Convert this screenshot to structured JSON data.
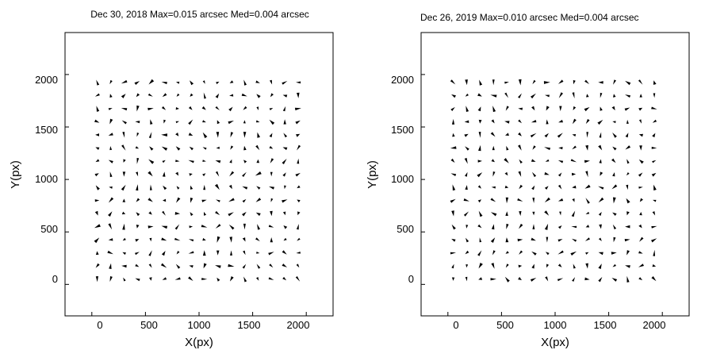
{
  "chart_data": [
    {
      "type": "quiver",
      "title": "Dec 30, 2018 Max=0.015 arcsec Med=0.004 arcsec",
      "xlabel": "X(px)",
      "ylabel": "Y(px)",
      "xlim": [
        -250,
        2250
      ],
      "ylim": [
        -300,
        2400
      ],
      "xticks": [
        0,
        500,
        1000,
        1500,
        2000
      ],
      "yticks": [
        0,
        500,
        1000,
        1500,
        2000
      ],
      "xtick_labels": [
        "0",
        "500",
        "1000",
        "1500",
        "2000"
      ],
      "ytick_labels": [
        "0",
        "500",
        "1000",
        "1500",
        "2000"
      ],
      "grid": false,
      "legend": "none",
      "vectors": {
        "x_range": [
          50,
          2000
        ],
        "y_range": [
          50,
          1990
        ],
        "spacing": 125,
        "max_arcsec": 0.015,
        "median_arcsec": 0.004,
        "seed": 17
      }
    },
    {
      "type": "quiver",
      "title": "Dec 26, 2019 Max=0.010 arcsec Med=0.004 arcsec",
      "xlabel": "X(px)",
      "ylabel": "Y(px)",
      "xlim": [
        -250,
        2250
      ],
      "ylim": [
        -300,
        2400
      ],
      "xticks": [
        0,
        500,
        1000,
        1500,
        2000
      ],
      "yticks": [
        0,
        500,
        1000,
        1500,
        2000
      ],
      "xtick_labels": [
        "0",
        "500",
        "1000",
        "1500",
        "2000"
      ],
      "ytick_labels": [
        "0",
        "500",
        "1000",
        "1500",
        "2000"
      ],
      "grid": false,
      "legend": "none",
      "vectors": {
        "x_range": [
          50,
          2000
        ],
        "y_range": [
          50,
          1990
        ],
        "spacing": 125,
        "max_arcsec": 0.01,
        "median_arcsec": 0.004,
        "seed": 42
      }
    }
  ]
}
